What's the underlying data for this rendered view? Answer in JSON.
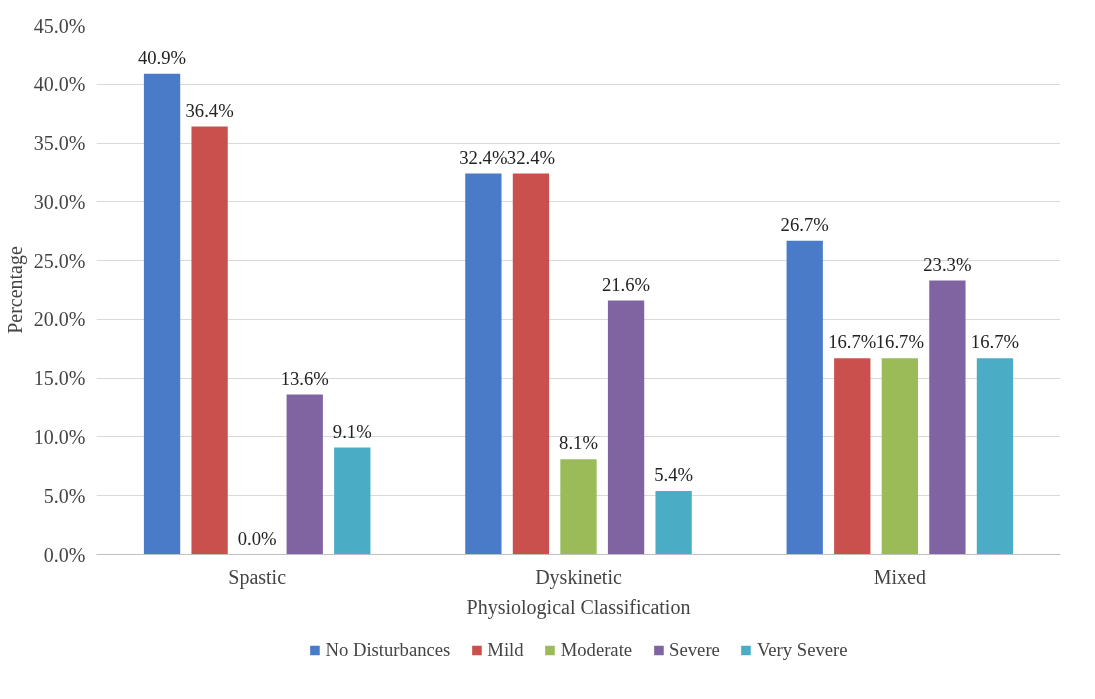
{
  "chart_data": {
    "type": "bar",
    "xlabel": "Physiological Classification",
    "ylabel": "Percentage",
    "categories": [
      "Spastic",
      "Dyskinetic",
      "Mixed"
    ],
    "ylim": [
      0,
      45
    ],
    "yticks": [
      {
        "value": 0,
        "label": "0.0%"
      },
      {
        "value": 5,
        "label": "5.0%"
      },
      {
        "value": 10,
        "label": "10.0%"
      },
      {
        "value": 15,
        "label": "15.0%"
      },
      {
        "value": 20,
        "label": "20.0%"
      },
      {
        "value": 25,
        "label": "25.0%"
      },
      {
        "value": 30,
        "label": "30.0%"
      },
      {
        "value": 35,
        "label": "35.0%"
      },
      {
        "value": 40,
        "label": "40.0%"
      },
      {
        "value": 45,
        "label": "45.0%"
      }
    ],
    "grid": "y",
    "legend": "bottom",
    "series": [
      {
        "name": "No Disturbances",
        "color": "#4a7bc8",
        "values": [
          40.9,
          32.4,
          26.7
        ],
        "value_labels": [
          "40.9%",
          "32.4%",
          "26.7%"
        ]
      },
      {
        "name": "Mild",
        "color": "#c9504d",
        "values": [
          36.4,
          32.4,
          16.7
        ],
        "value_labels": [
          "36.4%",
          "32.4%",
          "16.7%"
        ]
      },
      {
        "name": "Moderate",
        "color": "#9bbb59",
        "values": [
          0.0,
          8.1,
          16.7
        ],
        "value_labels": [
          "0.0%",
          "8.1%",
          "16.7%"
        ]
      },
      {
        "name": "Severe",
        "color": "#8064a2",
        "values": [
          13.6,
          21.6,
          23.3
        ],
        "value_labels": [
          "13.6%",
          "21.6%",
          "23.3%"
        ]
      },
      {
        "name": "Very Severe",
        "color": "#4bacc6",
        "values": [
          9.1,
          5.4,
          16.7
        ],
        "value_labels": [
          "9.1%",
          "5.4%",
          "16.7%"
        ]
      }
    ]
  }
}
